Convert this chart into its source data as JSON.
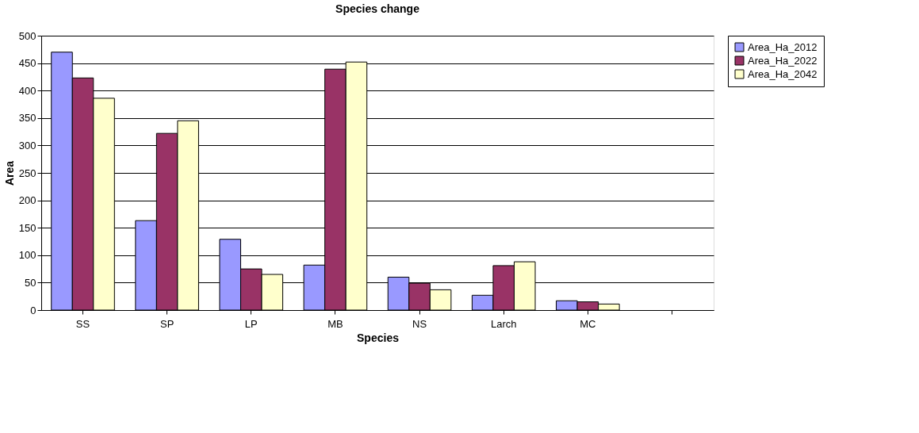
{
  "chart_data": {
    "type": "bar",
    "title": "Species change",
    "xlabel": "Species",
    "ylabel": "Area",
    "categories": [
      "SS",
      "SP",
      "LP",
      "MB",
      "NS",
      "Larch",
      "MC",
      null
    ],
    "series": [
      {
        "name": "Area_Ha_2012",
        "color": "#9999ff",
        "values": [
          470,
          163,
          129,
          82,
          60,
          27,
          17,
          null
        ]
      },
      {
        "name": "Area_Ha_2022",
        "color": "#993366",
        "values": [
          423,
          322,
          75,
          439,
          49,
          81,
          15,
          null
        ]
      },
      {
        "name": "Area_Ha_2042",
        "color": "#ffffcc",
        "values": [
          386,
          345,
          65,
          452,
          37,
          88,
          11,
          null
        ]
      }
    ],
    "ylim": [
      0,
      500
    ],
    "yticks": [
      0,
      50,
      100,
      150,
      200,
      250,
      300,
      350,
      400,
      450,
      500
    ],
    "grid": "y",
    "legend": "right"
  }
}
